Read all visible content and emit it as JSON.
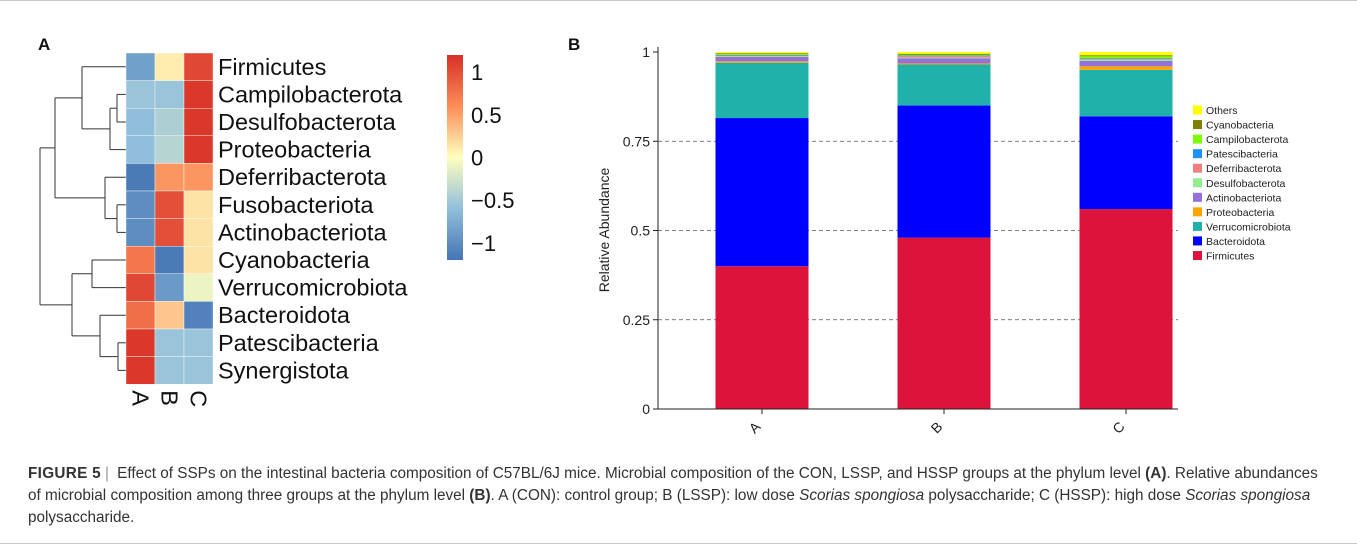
{
  "chart_data": [
    {
      "type": "heatmap",
      "panel_label": "A",
      "rows": [
        "Firmicutes",
        "Campilobacterota",
        "Desulfobacterota",
        "Proteobacteria",
        "Deferribacterota",
        "Fusobacteriota",
        "Actinobacteriota",
        "Cyanobacteria",
        "Verrucomicrobiota",
        "Bacteroidota",
        "Patescibacteria",
        "Synergistota"
      ],
      "columns": [
        "A",
        "B",
        "C"
      ],
      "values": [
        [
          -0.85,
          0.1,
          1.05
        ],
        [
          -0.55,
          -0.55,
          1.15
        ],
        [
          -0.6,
          -0.45,
          1.15
        ],
        [
          -0.6,
          -0.4,
          1.15
        ],
        [
          -1.15,
          0.55,
          0.55
        ],
        [
          -1.0,
          1.0,
          0.15
        ],
        [
          -1.0,
          1.0,
          0.15
        ],
        [
          0.75,
          -1.15,
          0.15
        ],
        [
          1.05,
          -0.9,
          -0.1
        ],
        [
          0.8,
          0.3,
          -1.1
        ],
        [
          1.15,
          -0.55,
          -0.55
        ],
        [
          1.15,
          -0.55,
          -0.55
        ]
      ],
      "colorbar": {
        "ticks": [
          "1",
          "0.5",
          "0",
          "−0.5",
          "−1"
        ],
        "range": [
          -1.2,
          1.2
        ],
        "low_color": "#4575b4",
        "mid_color": "#ffffbf",
        "high_color": "#d73027"
      },
      "dendrogram": "rows"
    },
    {
      "type": "bar",
      "stacked": true,
      "panel_label": "B",
      "ylabel": "Relative Abundance",
      "ylim": [
        0,
        1
      ],
      "yticks": [
        "0",
        "0.25",
        "0.5",
        "0.75",
        "1"
      ],
      "grid": "dashed horizontal",
      "legend_position": "right",
      "categories": [
        "A",
        "B",
        "C"
      ],
      "series": [
        {
          "name": "Firmicutes",
          "color": "#dc143c",
          "values": [
            0.4,
            0.48,
            0.56
          ]
        },
        {
          "name": "Bacteroidota",
          "color": "#0000ff",
          "values": [
            0.415,
            0.37,
            0.26
          ]
        },
        {
          "name": "Verrucomicrobiota",
          "color": "#20b2aa",
          "values": [
            0.155,
            0.115,
            0.13
          ]
        },
        {
          "name": "Proteobacteria",
          "color": "#ffa500",
          "values": [
            0.004,
            0.003,
            0.01
          ]
        },
        {
          "name": "Actinobacteriota",
          "color": "#9370db",
          "values": [
            0.012,
            0.014,
            0.015
          ]
        },
        {
          "name": "Desulfobacterota",
          "color": "#90ee90",
          "values": [
            0.002,
            0.002,
            0.003
          ]
        },
        {
          "name": "Deferribacterota",
          "color": "#f08080",
          "values": [
            0.002,
            0.004,
            0.002
          ]
        },
        {
          "name": "Patescibacteria",
          "color": "#1e90ff",
          "values": [
            0.002,
            0.002,
            0.002
          ]
        },
        {
          "name": "Campilobacterota",
          "color": "#7cfc00",
          "values": [
            0.003,
            0.002,
            0.006
          ]
        },
        {
          "name": "Cyanobacteria",
          "color": "#808000",
          "values": [
            0.002,
            0.003,
            0.003
          ]
        },
        {
          "name": "Others",
          "color": "#ffff00",
          "values": [
            0.003,
            0.005,
            0.009
          ]
        }
      ],
      "legend_order": [
        "Others",
        "Cyanobacteria",
        "Campilobacterota",
        "Patescibacteria",
        "Deferribacterota",
        "Desulfobacterota",
        "Actinobacteriota",
        "Proteobacteria",
        "Verrucomicrobiota",
        "Bacteroidota",
        "Firmicutes"
      ]
    }
  ],
  "caption": {
    "figure_label": "FIGURE 5",
    "separator": "|",
    "part1": " Effect of SSPs on the intestinal bacteria composition of C57BL/6J mice. Microbial composition of the CON, LSSP, and HSSP groups at the phylum level ",
    "ref_a": "(A)",
    "part2": ". Relative abundances of microbial composition among three groups at the phylum level ",
    "ref_b": "(B)",
    "part3": ". A (CON): control group; B (LSSP): low dose ",
    "species1": "Scorias spongiosa",
    "part4": " polysaccharide; C (HSSP): high dose ",
    "species2": "Scorias spongiosa",
    "part5": " polysaccharide."
  }
}
